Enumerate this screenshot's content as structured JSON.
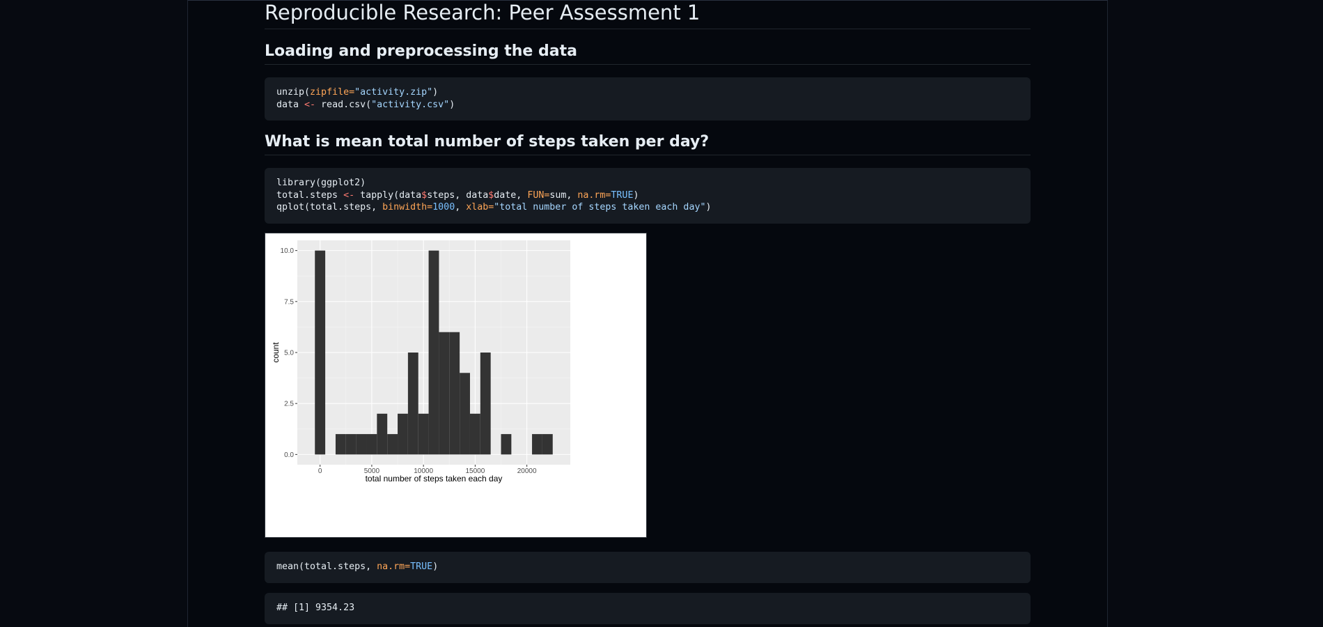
{
  "document": {
    "title": "Reproducible Research: Peer Assessment 1",
    "sections": [
      {
        "heading": "Loading and preprocessing the data",
        "code_lines": [
          [
            {
              "t": "unzip(",
              "c": ""
            },
            {
              "t": "zipfile=",
              "c": "arg"
            },
            {
              "t": "\"activity.zip\"",
              "c": "str"
            },
            {
              "t": ")",
              "c": ""
            }
          ],
          [
            {
              "t": "data ",
              "c": ""
            },
            {
              "t": "<-",
              "c": "op"
            },
            {
              "t": " read.csv(",
              "c": ""
            },
            {
              "t": "\"activity.csv\"",
              "c": "str"
            },
            {
              "t": ")",
              "c": ""
            }
          ]
        ]
      },
      {
        "heading": "What is mean total number of steps taken per day?",
        "code_lines": [
          [
            {
              "t": "library(ggplot2)",
              "c": ""
            }
          ],
          [
            {
              "t": "total.steps ",
              "c": ""
            },
            {
              "t": "<-",
              "c": "op"
            },
            {
              "t": " tapply(data",
              "c": ""
            },
            {
              "t": "$",
              "c": "op"
            },
            {
              "t": "steps, data",
              "c": ""
            },
            {
              "t": "$",
              "c": "op"
            },
            {
              "t": "date, ",
              "c": ""
            },
            {
              "t": "FUN=",
              "c": "arg"
            },
            {
              "t": "sum, ",
              "c": ""
            },
            {
              "t": "na.rm=",
              "c": "arg"
            },
            {
              "t": "TRUE",
              "c": "num"
            },
            {
              "t": ")",
              "c": ""
            }
          ],
          [
            {
              "t": "qplot(total.steps, ",
              "c": ""
            },
            {
              "t": "binwidth=",
              "c": "arg"
            },
            {
              "t": "1000",
              "c": "num"
            },
            {
              "t": ", ",
              "c": ""
            },
            {
              "t": "xlab=",
              "c": "arg"
            },
            {
              "t": "\"total number of steps taken each day\"",
              "c": "str"
            },
            {
              "t": ")",
              "c": ""
            }
          ]
        ]
      }
    ],
    "code_mean": [
      [
        {
          "t": "mean(total.steps, ",
          "c": ""
        },
        {
          "t": "na.rm=",
          "c": "arg"
        },
        {
          "t": "TRUE",
          "c": "num"
        },
        {
          "t": ")",
          "c": ""
        }
      ]
    ],
    "output_mean": [
      [
        {
          "t": "## [1] 9354.23",
          "c": ""
        }
      ]
    ]
  },
  "colors": {
    "keyword_operator": "#ff7b72",
    "argument_name": "#ffa657",
    "string_literal": "#a5d6ff",
    "numeric_constant": "#79c0ff",
    "bar_fill": "#333333",
    "panel_background": "#ebebeb"
  },
  "chart_data": {
    "type": "bar",
    "subtype": "histogram",
    "binwidth": 1000,
    "bins": [
      {
        "x0": -500,
        "x1": 500,
        "count": 10
      },
      {
        "x0": 500,
        "x1": 1500,
        "count": 0
      },
      {
        "x0": 1500,
        "x1": 2500,
        "count": 1
      },
      {
        "x0": 2500,
        "x1": 3500,
        "count": 1
      },
      {
        "x0": 3500,
        "x1": 4500,
        "count": 1
      },
      {
        "x0": 4500,
        "x1": 5500,
        "count": 1
      },
      {
        "x0": 5500,
        "x1": 6500,
        "count": 2
      },
      {
        "x0": 6500,
        "x1": 7500,
        "count": 1
      },
      {
        "x0": 7500,
        "x1": 8500,
        "count": 2
      },
      {
        "x0": 8500,
        "x1": 9500,
        "count": 5
      },
      {
        "x0": 9500,
        "x1": 10500,
        "count": 2
      },
      {
        "x0": 10500,
        "x1": 11500,
        "count": 10
      },
      {
        "x0": 11500,
        "x1": 12500,
        "count": 6
      },
      {
        "x0": 12500,
        "x1": 13500,
        "count": 6
      },
      {
        "x0": 13500,
        "x1": 14500,
        "count": 4
      },
      {
        "x0": 14500,
        "x1": 15500,
        "count": 2
      },
      {
        "x0": 15500,
        "x1": 16500,
        "count": 5
      },
      {
        "x0": 16500,
        "x1": 17500,
        "count": 0
      },
      {
        "x0": 17500,
        "x1": 18500,
        "count": 1
      },
      {
        "x0": 18500,
        "x1": 19500,
        "count": 0
      },
      {
        "x0": 19500,
        "x1": 20500,
        "count": 0
      },
      {
        "x0": 20500,
        "x1": 21500,
        "count": 1
      },
      {
        "x0": 21500,
        "x1": 22500,
        "count": 1
      }
    ],
    "x_ticks": [
      0,
      5000,
      10000,
      15000,
      20000
    ],
    "x_tick_labels": [
      "0",
      "5000",
      "10000",
      "15000",
      "20000"
    ],
    "y_ticks": [
      0,
      2.5,
      5,
      7.5,
      10
    ],
    "y_tick_labels": [
      "0.0",
      "2.5",
      "5.0",
      "7.5",
      "10.0"
    ],
    "xlim": [
      -2200,
      24200
    ],
    "ylim": [
      -0.5,
      10.5
    ],
    "xlabel": "total number of steps taken each day",
    "ylabel": "count",
    "grid": true
  }
}
